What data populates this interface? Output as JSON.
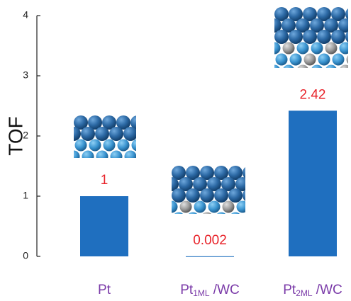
{
  "chart_data": {
    "type": "bar",
    "y_label": "TOF",
    "categories": [
      [
        "Pt"
      ],
      [
        "Pt",
        "1ML",
        " /WC"
      ],
      [
        "Pt",
        "2ML",
        " /WC"
      ]
    ],
    "values": [
      1,
      0.002,
      2.42
    ],
    "color": "#1f6fbf",
    "label_color": "#e8232a",
    "category_color": "#7a3aa8",
    "ylim": [
      0,
      4
    ],
    "yticks": [
      0,
      1,
      2,
      3,
      4
    ],
    "grid": false
  }
}
